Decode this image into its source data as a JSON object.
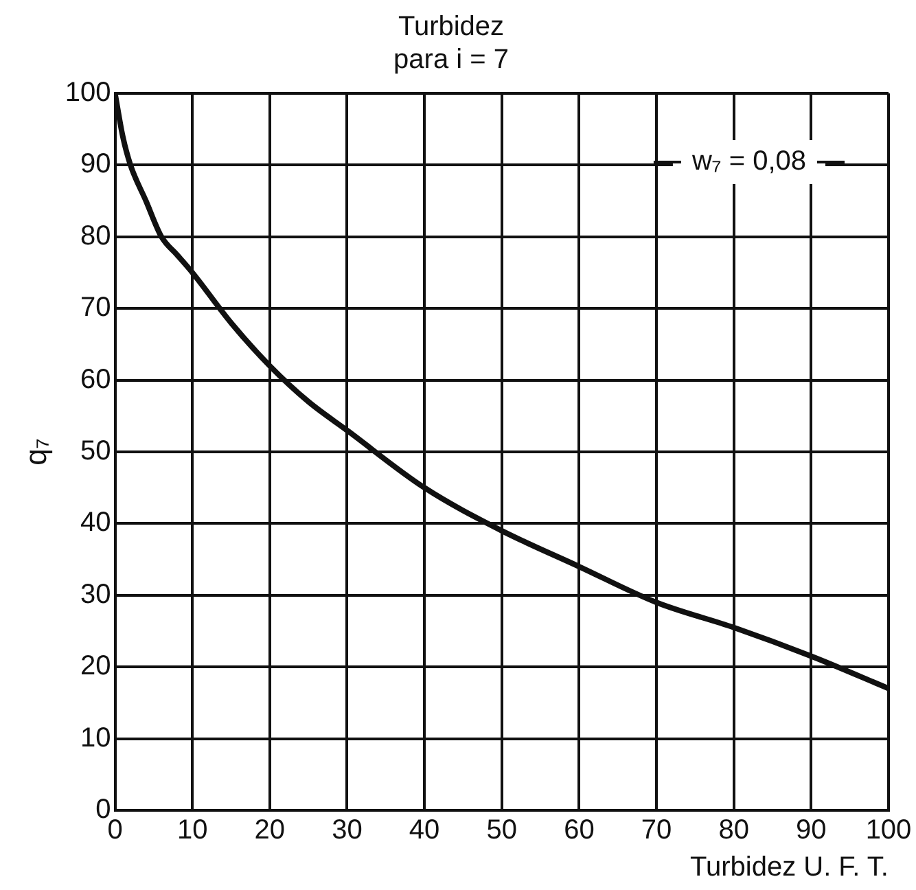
{
  "chart_data": {
    "type": "line",
    "title": "Turbidez",
    "subtitle": "para i = 7",
    "xlabel": "Turbidez U. F. T.",
    "ylabel": "q₇",
    "annotations": [
      "w₇ = 0,08"
    ],
    "x": [
      0,
      1,
      2,
      4,
      6,
      8,
      10,
      15,
      20,
      25,
      30,
      40,
      50,
      60,
      70,
      80,
      90,
      100
    ],
    "series": [
      {
        "color": "#111111",
        "values": [
          100,
          94,
          90,
          85,
          80,
          77.5,
          75,
          68,
          62,
          57,
          53,
          45,
          39,
          34,
          29,
          25.5,
          21.5,
          17
        ]
      }
    ],
    "xlim": [
      0,
      100
    ],
    "ylim": [
      0,
      100
    ],
    "xticks": [
      0,
      10,
      20,
      30,
      40,
      50,
      60,
      70,
      80,
      90,
      100
    ],
    "yticks": [
      0,
      10,
      20,
      30,
      40,
      50,
      60,
      70,
      80,
      90,
      100
    ],
    "grid": true,
    "legend": false,
    "marker": "none",
    "line_style": "solid"
  }
}
